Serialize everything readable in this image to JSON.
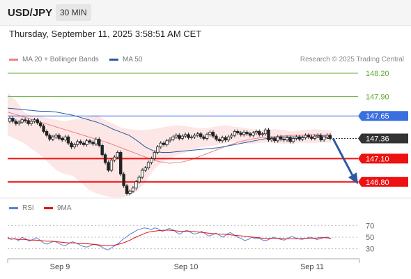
{
  "header": {
    "symbol": "USD/JPY",
    "interval": "30 MIN",
    "datetime": "Thursday, September 11, 2025 3:58:51 AM CET"
  },
  "legend": {
    "ma20": {
      "label": "MA 20 + Bollinger Bands",
      "color": "#f08080"
    },
    "ma50": {
      "label": "MA 50",
      "color": "#2c5aa0"
    },
    "credit": "Research © 2025 Trading Central"
  },
  "rsi_legend": {
    "rsi": {
      "label": "RSI",
      "color": "#5b7fd6"
    },
    "ma9": {
      "label": "9MA",
      "color": "#dd1111"
    }
  },
  "chart_data": [
    {
      "type": "line",
      "title": "",
      "ylim": [
        146.6,
        148.29
      ],
      "x_axis_labels": [
        "Sep 9",
        "Sep 10",
        "Sep 11"
      ],
      "levels": [
        {
          "value": 148.2,
          "label": "148.20",
          "style": "resistance",
          "color": "#5fa830"
        },
        {
          "value": 147.9,
          "label": "147.90",
          "style": "resistance",
          "color": "#5fa830"
        },
        {
          "value": 147.65,
          "label": "147.65",
          "style": "pivot",
          "color": "#3a6fe0"
        },
        {
          "value": 147.36,
          "label": "147.36",
          "style": "last",
          "color": "#333333"
        },
        {
          "value": 147.1,
          "label": "147.10",
          "style": "support",
          "color": "#ee1111"
        },
        {
          "value": 146.8,
          "label": "146.80",
          "style": "support",
          "color": "#ee1111"
        }
      ],
      "series": [
        {
          "values": [
            147.62,
            147.58,
            147.55,
            147.57,
            147.6,
            147.59,
            147.55,
            147.58,
            147.6,
            147.56,
            147.52,
            147.45,
            147.4,
            147.35,
            147.38,
            147.4,
            147.36,
            147.34,
            147.38,
            147.3,
            147.25,
            147.28,
            147.32,
            147.3,
            147.28,
            147.33,
            147.31,
            147.29,
            147.35,
            147.27,
            147.15,
            147.05,
            146.95,
            147.08,
            147.12,
            147.18,
            146.9,
            146.75,
            146.65,
            146.68,
            146.72,
            146.8,
            146.86,
            146.95,
            146.98,
            147.05,
            147.1,
            147.18,
            147.25,
            147.3,
            147.28,
            147.33,
            147.35,
            147.38,
            147.4,
            147.36,
            147.39,
            147.41,
            147.37,
            147.38,
            147.4,
            147.42,
            147.38,
            147.36,
            147.41,
            147.44,
            147.39,
            147.35,
            147.33,
            147.37,
            147.34,
            147.38,
            147.4,
            147.45,
            147.43,
            147.41,
            147.44,
            147.42,
            147.4,
            147.43,
            147.45,
            147.41,
            147.42,
            147.47,
            147.34,
            147.36,
            147.33,
            147.38,
            147.35,
            147.34,
            147.37,
            147.32,
            147.36,
            147.38,
            147.35,
            147.37,
            147.4,
            147.38,
            147.36,
            147.39,
            147.4,
            147.34,
            147.38,
            147.4,
            147.36
          ],
          "opens": [
            147.58,
            147.62,
            147.58,
            147.55,
            147.57,
            147.6,
            147.59,
            147.55,
            147.58,
            147.6,
            147.56,
            147.52,
            147.45,
            147.4,
            147.35,
            147.38,
            147.4,
            147.36,
            147.34,
            147.38,
            147.3,
            147.25,
            147.28,
            147.32,
            147.3,
            147.28,
            147.33,
            147.31,
            147.29,
            147.35,
            147.27,
            147.15,
            147.05,
            146.95,
            147.08,
            147.12,
            147.18,
            146.9,
            146.75,
            146.65,
            146.68,
            146.72,
            146.8,
            146.86,
            146.95,
            146.98,
            147.05,
            147.1,
            147.18,
            147.25,
            147.3,
            147.28,
            147.33,
            147.35,
            147.38,
            147.4,
            147.36,
            147.39,
            147.41,
            147.37,
            147.38,
            147.4,
            147.42,
            147.38,
            147.36,
            147.41,
            147.44,
            147.39,
            147.35,
            147.33,
            147.37,
            147.34,
            147.38,
            147.4,
            147.45,
            147.43,
            147.41,
            147.44,
            147.42,
            147.4,
            147.43,
            147.45,
            147.41,
            147.42,
            147.47,
            147.34,
            147.36,
            147.33,
            147.38,
            147.35,
            147.34,
            147.37,
            147.32,
            147.36,
            147.38,
            147.35,
            147.37,
            147.4,
            147.38,
            147.36,
            147.39,
            147.4,
            147.34,
            147.38,
            147.4
          ]
        },
        {
          "name": "MA 20",
          "values": [
            147.7,
            147.66,
            147.62,
            147.58,
            147.54,
            147.5,
            147.46,
            147.42,
            147.38,
            147.34,
            147.3,
            147.25,
            147.2,
            147.15,
            147.1,
            147.06,
            147.04,
            147.05,
            147.08,
            147.13,
            147.18,
            147.23,
            147.28,
            147.32,
            147.35,
            147.37,
            147.38,
            147.39,
            147.4,
            147.4,
            147.41,
            147.4,
            147.4
          ]
        },
        {
          "name": "MA 50",
          "values": [
            147.75,
            147.74,
            147.73,
            147.72,
            147.71,
            147.71,
            147.7,
            147.68,
            147.66,
            147.63,
            147.6,
            147.57,
            147.53,
            147.48,
            147.44,
            147.4,
            147.33,
            147.25,
            147.2,
            147.18,
            147.18,
            147.19,
            147.2,
            147.21,
            147.22,
            147.23,
            147.24,
            147.26,
            147.28,
            147.3,
            147.32,
            147.34,
            147.36,
            147.37,
            147.38,
            147.38,
            147.38,
            147.38,
            147.37,
            147.37,
            147.36
          ]
        },
        {
          "name": "Bollinger upper",
          "values": [
            147.95,
            147.85,
            147.7,
            147.65,
            147.65,
            147.62,
            147.6,
            147.58,
            147.6,
            147.62,
            147.64,
            147.66,
            147.6,
            147.55,
            147.5,
            147.48,
            147.47,
            147.47,
            147.48,
            147.5,
            147.52,
            147.53,
            147.52,
            147.5,
            147.49,
            147.5,
            147.52,
            147.53,
            147.51,
            147.5,
            147.48,
            147.47,
            147.47,
            147.48,
            147.47,
            147.45,
            147.46,
            147.47,
            147.48,
            147.47,
            147.46
          ]
        },
        {
          "name": "Bollinger lower",
          "values": [
            147.4,
            147.35,
            147.3,
            147.22,
            147.15,
            147.05,
            146.95,
            146.9,
            146.88,
            146.8,
            146.7,
            146.65,
            146.62,
            146.6,
            146.6,
            146.62,
            146.68,
            146.8,
            146.95,
            147.05,
            147.1,
            147.15,
            147.18,
            147.22,
            147.25,
            147.26,
            147.28,
            147.3,
            147.32,
            147.3,
            147.29,
            147.3,
            147.31,
            147.3,
            147.29,
            147.3,
            147.31,
            147.3,
            147.3,
            147.31,
            147.3
          ]
        }
      ],
      "annotations": [
        "arrow pointing down from 147.36 toward 146.80"
      ]
    },
    {
      "type": "line",
      "title": "",
      "ylim": [
        20,
        80
      ],
      "ticks": [
        70,
        50,
        30
      ],
      "series": [
        {
          "name": "RSI",
          "values": [
            50,
            46,
            48,
            44,
            50,
            47,
            43,
            46,
            49,
            45,
            40,
            38,
            41,
            43,
            40,
            37,
            35,
            39,
            42,
            40,
            37,
            34,
            33,
            35,
            38,
            36,
            34,
            30,
            28,
            32,
            36,
            40,
            46,
            50,
            55,
            58,
            62,
            64,
            66,
            65,
            63,
            66,
            64,
            60,
            62,
            65,
            63,
            58,
            55,
            60,
            62,
            58,
            55,
            57,
            60,
            56,
            52,
            54,
            57,
            53,
            50,
            55,
            58,
            54,
            50,
            48,
            44,
            46,
            50,
            47,
            48,
            45,
            44,
            47,
            50,
            48,
            46,
            45,
            48,
            51,
            49,
            47,
            46,
            48,
            50,
            49,
            46,
            47,
            49,
            50,
            48
          ]
        },
        {
          "name": "9MA",
          "values": [
            47,
            47,
            46,
            46,
            45,
            45,
            44,
            43,
            43,
            42,
            41,
            40,
            40,
            39,
            39,
            38,
            37,
            36,
            35,
            36,
            38,
            41,
            45,
            50,
            54,
            58,
            60,
            61,
            62,
            62,
            61,
            60,
            60,
            60,
            59,
            58,
            57,
            56,
            55,
            55,
            54,
            53,
            52,
            51,
            50,
            49,
            48,
            48,
            48,
            48,
            47,
            47,
            47,
            48,
            48,
            48,
            49,
            49,
            48
          ]
        }
      ]
    }
  ]
}
